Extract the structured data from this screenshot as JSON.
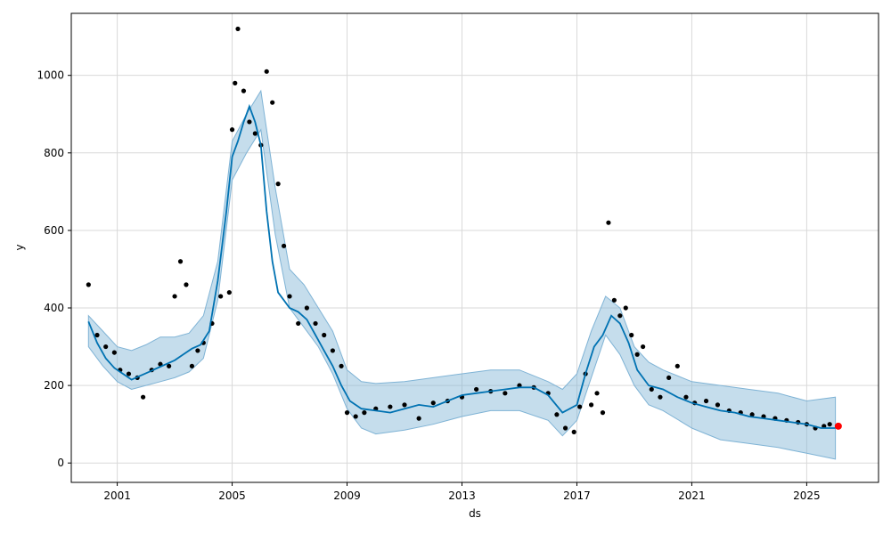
{
  "chart_data": {
    "type": "line",
    "title": "",
    "xlabel": "ds",
    "ylabel": "y",
    "xlim": [
      1999.4,
      2027.5
    ],
    "ylim": [
      -50,
      1160
    ],
    "x_ticks": [
      2001,
      2005,
      2009,
      2013,
      2017,
      2021,
      2025
    ],
    "x_tick_labels": [
      "2001",
      "2005",
      "2009",
      "2013",
      "2017",
      "2021",
      "2025"
    ],
    "y_ticks": [
      0,
      200,
      400,
      600,
      800,
      1000
    ],
    "y_tick_labels": [
      "0",
      "200",
      "400",
      "600",
      "800",
      "1000"
    ],
    "grid": true,
    "colors": {
      "observed": "#000000",
      "forecast": "#0072B2",
      "interval": "#7fb3d5",
      "highlight": "#ff0000"
    },
    "series": [
      {
        "kind": "forecast",
        "x": [
          2000.0,
          2000.3,
          2000.6,
          2000.9,
          2001.2,
          2001.5,
          2001.8,
          2002.1,
          2002.4,
          2002.7,
          2003.0,
          2003.3,
          2003.6,
          2003.9,
          2004.2,
          2004.5,
          2004.8,
          2005.0,
          2005.2,
          2005.4,
          2005.6,
          2005.8,
          2006.0,
          2006.2,
          2006.4,
          2006.6,
          2006.8,
          2007.0,
          2007.3,
          2007.6,
          2007.9,
          2008.2,
          2008.5,
          2008.8,
          2009.1,
          2009.5,
          2010.0,
          2010.5,
          2011.0,
          2011.5,
          2012.0,
          2012.5,
          2013.0,
          2013.5,
          2014.0,
          2014.5,
          2015.0,
          2015.5,
          2016.0,
          2016.5,
          2017.0,
          2017.3,
          2017.6,
          2017.9,
          2018.2,
          2018.5,
          2018.8,
          2019.1,
          2019.5,
          2020.0,
          2020.5,
          2021.0,
          2021.5,
          2022.0,
          2022.5,
          2023.0,
          2023.5,
          2024.0,
          2024.5,
          2025.0,
          2025.5,
          2026.0
        ],
        "y": [
          365,
          310,
          270,
          245,
          230,
          215,
          225,
          235,
          245,
          255,
          265,
          280,
          295,
          305,
          340,
          470,
          650,
          790,
          830,
          880,
          920,
          880,
          820,
          650,
          520,
          440,
          420,
          400,
          390,
          370,
          330,
          290,
          250,
          200,
          160,
          140,
          135,
          130,
          140,
          150,
          145,
          160,
          175,
          180,
          185,
          190,
          195,
          195,
          175,
          130,
          150,
          230,
          300,
          330,
          380,
          360,
          310,
          240,
          200,
          190,
          170,
          155,
          145,
          135,
          130,
          120,
          115,
          110,
          105,
          100,
          90,
          90
        ]
      },
      {
        "kind": "interval-upper",
        "x": [
          2000.0,
          2000.5,
          2001.0,
          2001.5,
          2002.0,
          2002.5,
          2003.0,
          2003.5,
          2004.0,
          2004.5,
          2005.0,
          2005.5,
          2006.0,
          2006.5,
          2007.0,
          2007.5,
          2008.0,
          2008.5,
          2009.0,
          2009.5,
          2010.0,
          2011.0,
          2012.0,
          2013.0,
          2014.0,
          2015.0,
          2016.0,
          2016.5,
          2017.0,
          2017.5,
          2018.0,
          2018.5,
          2019.0,
          2019.5,
          2020.0,
          2021.0,
          2022.0,
          2023.0,
          2024.0,
          2025.0,
          2026.0
        ],
        "y": [
          380,
          340,
          300,
          290,
          305,
          325,
          325,
          335,
          380,
          520,
          830,
          900,
          960,
          710,
          500,
          460,
          400,
          340,
          240,
          210,
          205,
          210,
          220,
          230,
          240,
          240,
          210,
          190,
          230,
          340,
          430,
          400,
          300,
          260,
          240,
          210,
          200,
          190,
          180,
          160,
          170
        ]
      },
      {
        "kind": "interval-lower",
        "x": [
          2000.0,
          2000.5,
          2001.0,
          2001.5,
          2002.0,
          2002.5,
          2003.0,
          2003.5,
          2004.0,
          2004.5,
          2005.0,
          2005.5,
          2006.0,
          2006.5,
          2007.0,
          2007.5,
          2008.0,
          2008.5,
          2009.0,
          2009.5,
          2010.0,
          2011.0,
          2012.0,
          2013.0,
          2014.0,
          2015.0,
          2016.0,
          2016.5,
          2017.0,
          2017.5,
          2018.0,
          2018.5,
          2019.0,
          2019.5,
          2020.0,
          2021.0,
          2022.0,
          2023.0,
          2024.0,
          2025.0,
          2026.0
        ],
        "y": [
          300,
          250,
          210,
          190,
          200,
          210,
          220,
          235,
          270,
          420,
          730,
          800,
          860,
          590,
          400,
          350,
          300,
          230,
          140,
          90,
          75,
          85,
          100,
          120,
          135,
          135,
          110,
          70,
          110,
          220,
          330,
          280,
          200,
          150,
          135,
          90,
          60,
          50,
          40,
          25,
          10
        ]
      },
      {
        "kind": "observed",
        "x": [
          2000.0,
          2000.3,
          2000.6,
          2000.9,
          2001.1,
          2001.4,
          2001.7,
          2001.9,
          2002.2,
          2002.5,
          2002.8,
          2003.0,
          2003.2,
          2003.4,
          2003.6,
          2003.8,
          2004.0,
          2004.3,
          2004.6,
          2004.9,
          2005.0,
          2005.1,
          2005.2,
          2005.4,
          2005.6,
          2005.8,
          2006.0,
          2006.2,
          2006.4,
          2006.6,
          2006.8,
          2007.0,
          2007.3,
          2007.6,
          2007.9,
          2008.2,
          2008.5,
          2008.8,
          2009.0,
          2009.3,
          2009.6,
          2010.0,
          2010.5,
          2011.0,
          2011.5,
          2012.0,
          2012.5,
          2013.0,
          2013.5,
          2014.0,
          2014.5,
          2015.0,
          2015.5,
          2016.0,
          2016.3,
          2016.6,
          2016.9,
          2017.1,
          2017.3,
          2017.5,
          2017.7,
          2017.9,
          2018.1,
          2018.3,
          2018.5,
          2018.7,
          2018.9,
          2019.1,
          2019.3,
          2019.6,
          2019.9,
          2020.2,
          2020.5,
          2020.8,
          2021.1,
          2021.5,
          2021.9,
          2022.3,
          2022.7,
          2023.1,
          2023.5,
          2023.9,
          2024.3,
          2024.7,
          2025.0,
          2025.3,
          2025.6,
          2025.8
        ],
        "y": [
          460,
          330,
          300,
          285,
          240,
          230,
          220,
          170,
          240,
          255,
          250,
          430,
          520,
          460,
          250,
          290,
          310,
          360,
          430,
          440,
          860,
          980,
          1120,
          960,
          880,
          850,
          820,
          1010,
          930,
          720,
          560,
          430,
          360,
          400,
          360,
          330,
          290,
          250,
          130,
          120,
          130,
          140,
          145,
          150,
          115,
          155,
          160,
          170,
          190,
          185,
          180,
          200,
          195,
          180,
          125,
          90,
          80,
          145,
          230,
          150,
          180,
          130,
          620,
          420,
          380,
          400,
          330,
          280,
          300,
          190,
          170,
          220,
          250,
          170,
          155,
          160,
          150,
          135,
          130,
          125,
          120,
          115,
          110,
          105,
          100,
          90,
          95,
          100
        ]
      },
      {
        "kind": "highlight",
        "x": [
          2026.1
        ],
        "y": [
          95
        ]
      }
    ]
  }
}
